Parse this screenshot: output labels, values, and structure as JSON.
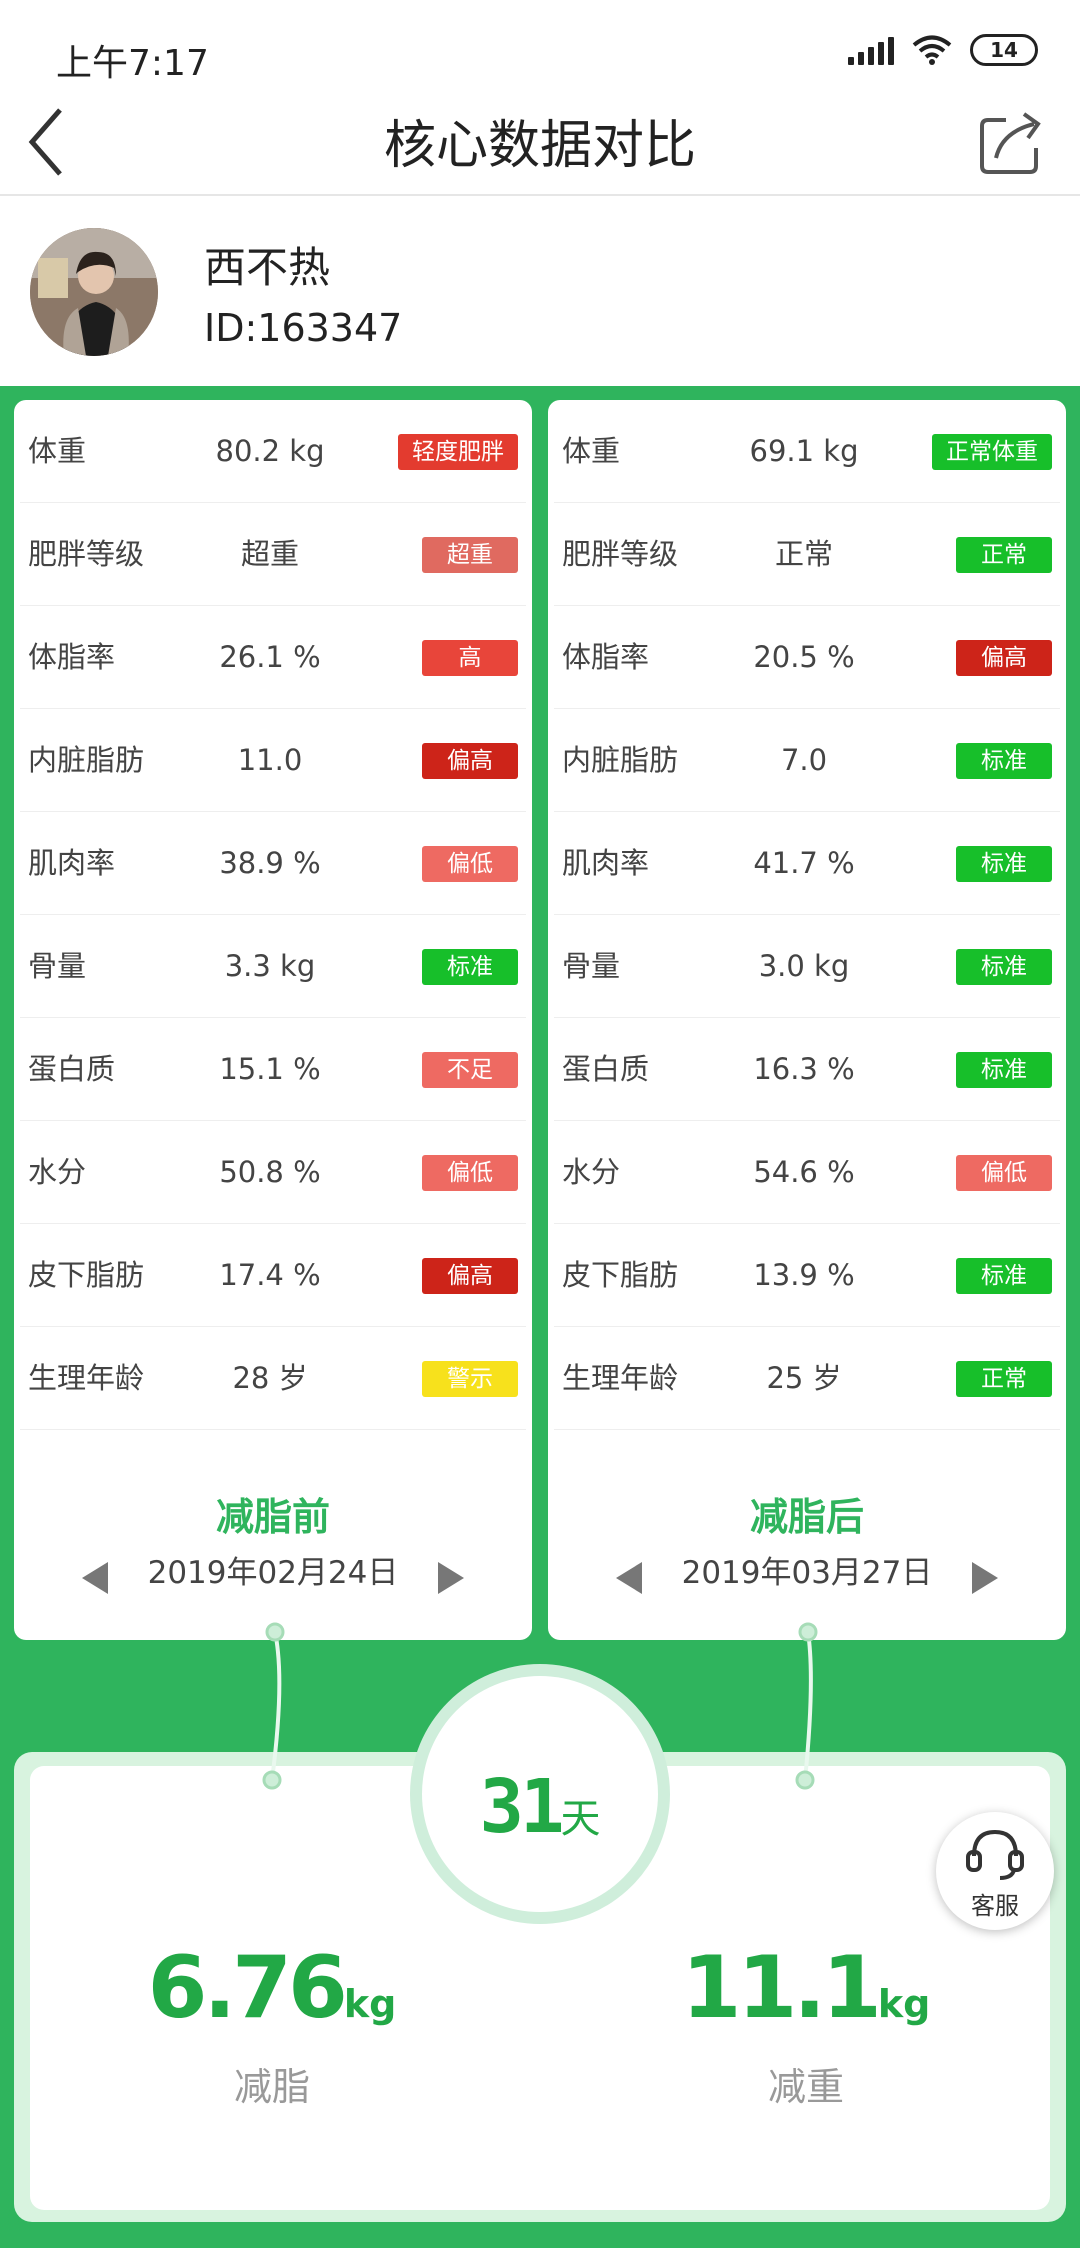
{
  "status_bar": {
    "time": "上午7:17",
    "battery": "14"
  },
  "header": {
    "title": "核心数据对比"
  },
  "profile": {
    "name": "西不热",
    "id": "ID:163347"
  },
  "colors": {
    "green": "#2fb45d",
    "red": "#e33b2f",
    "dark_red": "#cd2419",
    "light_red": "#ee6a62",
    "yellow": "#f7e11c",
    "badge_green": "#17bf2a"
  },
  "before": {
    "title": "减脂前",
    "date": "2019年02月24日",
    "rows": [
      {
        "label": "体重",
        "value": "80.2 kg",
        "badge": "轻度肥胖",
        "color": "#e33b2f"
      },
      {
        "label": "肥胖等级",
        "value": "超重",
        "badge": "超重",
        "color": "#e06a60"
      },
      {
        "label": "体脂率",
        "value": "26.1 %",
        "badge": "高",
        "color": "#e8453a"
      },
      {
        "label": "内脏脂肪",
        "value": "11.0",
        "badge": "偏高",
        "color": "#cd2419"
      },
      {
        "label": "肌肉率",
        "value": "38.9 %",
        "badge": "偏低",
        "color": "#ee6a62"
      },
      {
        "label": "骨量",
        "value": "3.3 kg",
        "badge": "标准",
        "color": "#17bf2a"
      },
      {
        "label": "蛋白质",
        "value": "15.1 %",
        "badge": "不足",
        "color": "#ee6a62"
      },
      {
        "label": "水分",
        "value": "50.8 %",
        "badge": "偏低",
        "color": "#ee6a62"
      },
      {
        "label": "皮下脂肪",
        "value": "17.4 %",
        "badge": "偏高",
        "color": "#cd2419"
      },
      {
        "label": "生理年龄",
        "value": "28 岁",
        "badge": "警示",
        "color": "#f7e11c"
      }
    ]
  },
  "after": {
    "title": "减脂后",
    "date": "2019年03月27日",
    "rows": [
      {
        "label": "体重",
        "value": "69.1 kg",
        "badge": "正常体重",
        "color": "#17bf2a"
      },
      {
        "label": "肥胖等级",
        "value": "正常",
        "badge": "正常",
        "color": "#17bf2a"
      },
      {
        "label": "体脂率",
        "value": "20.5 %",
        "badge": "偏高",
        "color": "#cd2419"
      },
      {
        "label": "内脏脂肪",
        "value": "7.0",
        "badge": "标准",
        "color": "#17bf2a"
      },
      {
        "label": "肌肉率",
        "value": "41.7 %",
        "badge": "标准",
        "color": "#17bf2a"
      },
      {
        "label": "骨量",
        "value": "3.0 kg",
        "badge": "标准",
        "color": "#17bf2a"
      },
      {
        "label": "蛋白质",
        "value": "16.3 %",
        "badge": "标准",
        "color": "#17bf2a"
      },
      {
        "label": "水分",
        "value": "54.6 %",
        "badge": "偏低",
        "color": "#ee6a62"
      },
      {
        "label": "皮下脂肪",
        "value": "13.9 %",
        "badge": "标准",
        "color": "#17bf2a"
      },
      {
        "label": "生理年龄",
        "value": "25 岁",
        "badge": "正常",
        "color": "#17bf2a"
      }
    ]
  },
  "summary": {
    "days_num": "31",
    "days_unit": "天",
    "fat_loss_value": "6.76",
    "fat_loss_unit": "kg",
    "fat_loss_label": "减脂",
    "weight_loss_value": "11.1",
    "weight_loss_unit": "kg",
    "weight_loss_label": "减重"
  },
  "service": {
    "label": "客服"
  }
}
